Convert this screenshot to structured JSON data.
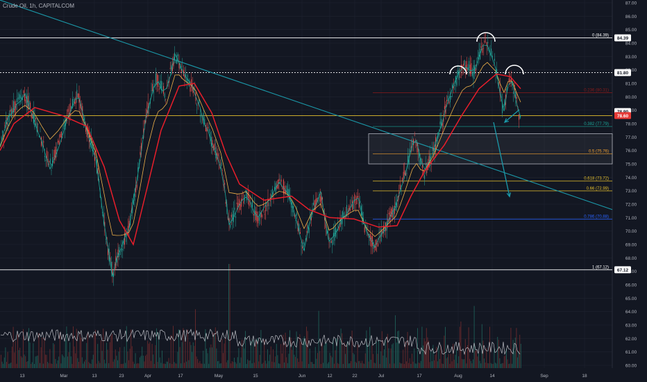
{
  "header": {
    "symbol": "Crude Oil",
    "interval": "1h",
    "source": "CAPITALCOM"
  },
  "colors": {
    "background": "#131722",
    "grid": "#1f2330",
    "axis_text": "#b2b5be",
    "price": "#c3c6cf",
    "bull": "#26a69a",
    "bear": "#ef5350",
    "ema_red": "#e91e2b",
    "ma_orange": "#f0b24a",
    "ma_teal": "#1aa89a",
    "trendline": "#1b9aaa",
    "support_yellow": "#e5c02d",
    "white_level": "#ffffff"
  },
  "chart_data": {
    "type": "candlestick",
    "title": "Crude Oil, 1h, CAPITALCOM",
    "y_axis": {
      "side": "right",
      "range": [
        60.0,
        87.0
      ],
      "ticks": [
        "60.00",
        "61.00",
        "62.00",
        "63.00",
        "64.00",
        "65.00",
        "66.00",
        "67.00",
        "68.00",
        "69.00",
        "70.00",
        "71.00",
        "72.00",
        "73.00",
        "74.00",
        "75.00",
        "76.00",
        "77.00",
        "78.00",
        "79.00",
        "80.00",
        "81.00",
        "82.00",
        "83.00",
        "84.00",
        "85.00",
        "86.00",
        "87.00"
      ]
    },
    "x_axis": {
      "tick_labels": [
        "13",
        "Mar",
        "13",
        "23",
        "Apr",
        "17",
        "May",
        "15",
        "Jun",
        "12",
        "22",
        "Jul",
        "17",
        "Aug",
        "14",
        "Sep",
        "18"
      ]
    },
    "price_path": [
      {
        "x": 0,
        "y": 76.5
      },
      {
        "x": 10,
        "y": 78.2
      },
      {
        "x": 22,
        "y": 79.4
      },
      {
        "x": 35,
        "y": 80.2
      },
      {
        "x": 48,
        "y": 78.6
      },
      {
        "x": 60,
        "y": 76.6
      },
      {
        "x": 72,
        "y": 74.8
      },
      {
        "x": 85,
        "y": 76.4
      },
      {
        "x": 98,
        "y": 78.6
      },
      {
        "x": 112,
        "y": 80.2
      },
      {
        "x": 125,
        "y": 77.5
      },
      {
        "x": 138,
        "y": 75.5
      },
      {
        "x": 148,
        "y": 71.5
      },
      {
        "x": 155,
        "y": 68.8
      },
      {
        "x": 162,
        "y": 66.8
      },
      {
        "x": 172,
        "y": 68.5
      },
      {
        "x": 185,
        "y": 70.0
      },
      {
        "x": 198,
        "y": 74.0
      },
      {
        "x": 210,
        "y": 78.5
      },
      {
        "x": 225,
        "y": 81.5
      },
      {
        "x": 238,
        "y": 80.0
      },
      {
        "x": 252,
        "y": 83.2
      },
      {
        "x": 265,
        "y": 81.6
      },
      {
        "x": 280,
        "y": 80.4
      },
      {
        "x": 295,
        "y": 78.0
      },
      {
        "x": 310,
        "y": 76.0
      },
      {
        "x": 320,
        "y": 74.5
      },
      {
        "x": 330,
        "y": 70.5
      },
      {
        "x": 340,
        "y": 71.5
      },
      {
        "x": 355,
        "y": 72.8
      },
      {
        "x": 370,
        "y": 71.0
      },
      {
        "x": 385,
        "y": 72.0
      },
      {
        "x": 400,
        "y": 73.5
      },
      {
        "x": 412,
        "y": 73.2
      },
      {
        "x": 425,
        "y": 71.4
      },
      {
        "x": 438,
        "y": 68.5
      },
      {
        "x": 450,
        "y": 71.5
      },
      {
        "x": 462,
        "y": 72.8
      },
      {
        "x": 475,
        "y": 68.8
      },
      {
        "x": 488,
        "y": 70.5
      },
      {
        "x": 500,
        "y": 71.5
      },
      {
        "x": 515,
        "y": 72.5
      },
      {
        "x": 528,
        "y": 69.8
      },
      {
        "x": 540,
        "y": 68.8
      },
      {
        "x": 555,
        "y": 70.3
      },
      {
        "x": 570,
        "y": 71.8
      },
      {
        "x": 582,
        "y": 74.0
      },
      {
        "x": 598,
        "y": 77.2
      },
      {
        "x": 610,
        "y": 74.2
      },
      {
        "x": 625,
        "y": 76.0
      },
      {
        "x": 640,
        "y": 78.8
      },
      {
        "x": 655,
        "y": 81.0
      },
      {
        "x": 668,
        "y": 82.5
      },
      {
        "x": 682,
        "y": 81.8
      },
      {
        "x": 700,
        "y": 84.3
      },
      {
        "x": 715,
        "y": 82.0
      },
      {
        "x": 725,
        "y": 78.8
      },
      {
        "x": 735,
        "y": 81.6
      },
      {
        "x": 742,
        "y": 80.2
      },
      {
        "x": 748,
        "y": 78.6
      }
    ],
    "ema_red_path": [
      {
        "x": 0,
        "y": 76.0
      },
      {
        "x": 20,
        "y": 78.0
      },
      {
        "x": 50,
        "y": 79.2
      },
      {
        "x": 90,
        "y": 78.6
      },
      {
        "x": 125,
        "y": 77.8
      },
      {
        "x": 150,
        "y": 74.8
      },
      {
        "x": 172,
        "y": 70.8
      },
      {
        "x": 192,
        "y": 69.0
      },
      {
        "x": 210,
        "y": 72.8
      },
      {
        "x": 232,
        "y": 77.5
      },
      {
        "x": 258,
        "y": 80.8
      },
      {
        "x": 280,
        "y": 81.0
      },
      {
        "x": 305,
        "y": 78.8
      },
      {
        "x": 325,
        "y": 75.8
      },
      {
        "x": 345,
        "y": 73.5
      },
      {
        "x": 380,
        "y": 72.3
      },
      {
        "x": 420,
        "y": 72.6
      },
      {
        "x": 445,
        "y": 71.6
      },
      {
        "x": 475,
        "y": 71.0
      },
      {
        "x": 510,
        "y": 70.9
      },
      {
        "x": 545,
        "y": 70.3
      },
      {
        "x": 572,
        "y": 70.4
      },
      {
        "x": 592,
        "y": 72.6
      },
      {
        "x": 612,
        "y": 74.5
      },
      {
        "x": 640,
        "y": 76.4
      },
      {
        "x": 665,
        "y": 78.6
      },
      {
        "x": 690,
        "y": 80.6
      },
      {
        "x": 715,
        "y": 81.7
      },
      {
        "x": 735,
        "y": 81.5
      },
      {
        "x": 750,
        "y": 80.6
      }
    ],
    "levels": [
      {
        "label": "0 (84.39)",
        "price": 84.39,
        "style": "solid",
        "color": "#ffffff"
      },
      {
        "label": "81.80",
        "price": 81.8,
        "style": "dotted",
        "color": "#ffffff"
      },
      {
        "label": "0.236 (80.31)",
        "price": 80.31,
        "style": "solid",
        "color": "#8b1a1a"
      },
      {
        "label": "78.60",
        "price": 78.6,
        "style": "solid",
        "color": "#e5c02d"
      },
      {
        "label": "0.382 (77.79)",
        "price": 77.79,
        "style": "solid",
        "color": "#1aa89a"
      },
      {
        "label": "0.5 (75.76)",
        "price": 75.76,
        "style": "solid",
        "color": "#f0a030"
      },
      {
        "label": "0.618 (73.72)",
        "price": 73.72,
        "style": "solid",
        "color": "#e5c02d"
      },
      {
        "label": "0.66 (72.99)",
        "price": 72.99,
        "style": "solid",
        "color": "#e5c02d"
      },
      {
        "label": "0.786 (70.88)",
        "price": 70.88,
        "style": "solid",
        "color": "#2962ff"
      },
      {
        "label": "1 (67.12)",
        "price": 67.12,
        "style": "solid",
        "color": "#ffffff"
      }
    ],
    "right_tags": [
      {
        "text": "84.39",
        "price": 84.39,
        "bg": "#ffffff",
        "fg": "#131722"
      },
      {
        "text": "81.80",
        "price": 81.8,
        "bg": "#ffffff",
        "fg": "#131722"
      },
      {
        "text": "78.90",
        "price": 78.9,
        "bg": "#ffffff",
        "fg": "#131722"
      },
      {
        "text": "78.60",
        "price": 78.6,
        "bg": "#e53935",
        "fg": "#ffffff"
      },
      {
        "text": "67.12",
        "price": 67.12,
        "bg": "#ffffff",
        "fg": "#131722"
      }
    ],
    "grid": true,
    "volume": true
  }
}
